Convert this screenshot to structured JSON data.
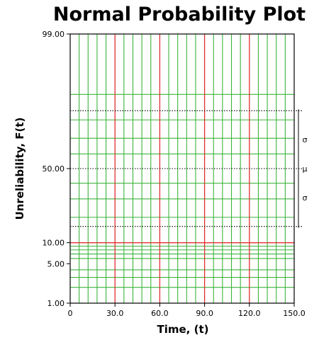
{
  "chart_data": {
    "type": "line",
    "title": "Normal Probability Plot",
    "xlabel": "Time, (t)",
    "ylabel": "Unreliability, F(t)",
    "xlim": [
      0,
      150
    ],
    "x_ticks": [
      {
        "value": 0,
        "label": "0"
      },
      {
        "value": 30,
        "label": "30.0"
      },
      {
        "value": 60,
        "label": "60.0"
      },
      {
        "value": 90,
        "label": "90.0"
      },
      {
        "value": 120,
        "label": "120.0"
      },
      {
        "value": 150,
        "label": "150.0"
      }
    ],
    "y_scale": "normal-probability",
    "y_ticks": [
      {
        "value": 1,
        "label": "1.00"
      },
      {
        "value": 5,
        "label": "5.00"
      },
      {
        "value": 10,
        "label": "10.00"
      },
      {
        "value": 50,
        "label": "50.00"
      },
      {
        "value": 99,
        "label": "99.00"
      }
    ],
    "x_minor_step": 6,
    "x_major_step": 30,
    "y_minor_lines": [
      2,
      3,
      4,
      6,
      7,
      8,
      9,
      20,
      30,
      40,
      60,
      70,
      80,
      90
    ],
    "y_major_lines": [
      10
    ],
    "reference_lines": [
      {
        "value": 84.13,
        "label": "σ",
        "style": "dotted"
      },
      {
        "value": 50,
        "label": "μ",
        "style": "dotted"
      },
      {
        "value": 15.87,
        "label": "σ",
        "style": "dotted"
      }
    ],
    "grid": true,
    "colors": {
      "minor_grid": "#3cb43c",
      "major_grid": "#e03030",
      "reference": "#000000"
    }
  }
}
